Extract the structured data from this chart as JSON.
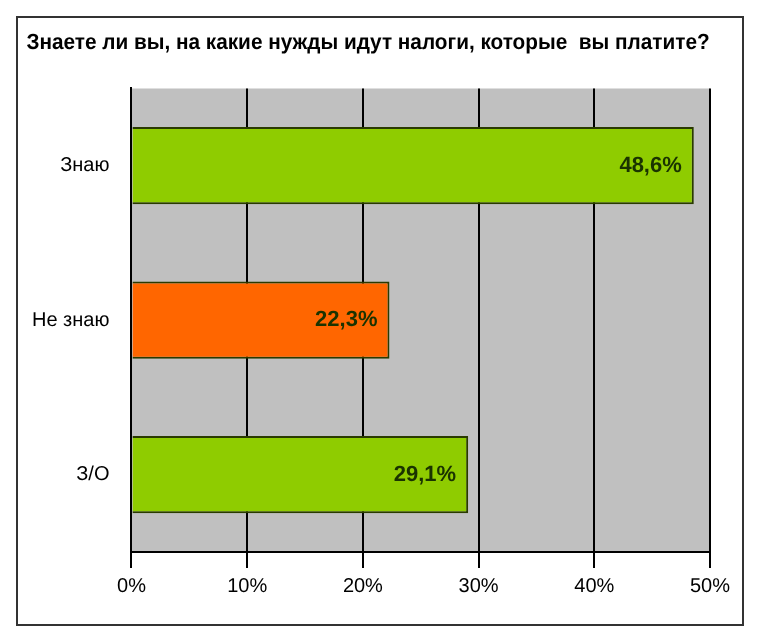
{
  "chart_data": {
    "type": "bar",
    "orientation": "horizontal",
    "title": "Знаете ли вы, на какие нужды идут налоги, которые  вы платите?",
    "categories": [
      "Знаю",
      "Не знаю",
      "З/О"
    ],
    "values": [
      48.6,
      22.3,
      29.1
    ],
    "colors": [
      "#8fcc00",
      "#ff6600",
      "#8fcc00"
    ],
    "value_labels": [
      "48,6%",
      "22,3%",
      "29,1%"
    ],
    "xlim": [
      0,
      50
    ],
    "xticks": [
      {
        "value": 0,
        "label": "0%"
      },
      {
        "value": 10,
        "label": "10%"
      },
      {
        "value": 20,
        "label": "20%"
      },
      {
        "value": 30,
        "label": "30%"
      },
      {
        "value": 40,
        "label": "40%"
      },
      {
        "value": 50,
        "label": "50%"
      }
    ],
    "grid": "x",
    "legend": false
  }
}
